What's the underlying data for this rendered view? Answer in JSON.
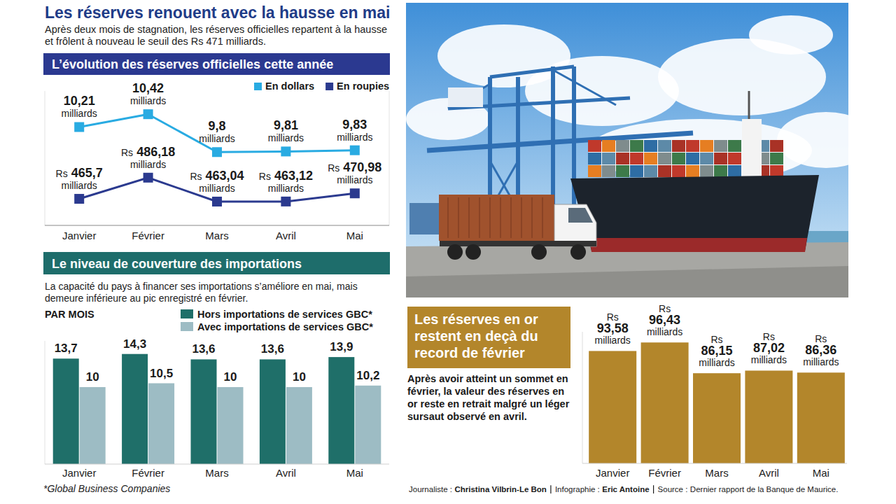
{
  "header": {
    "title": "Les réserves renouent avec la hausse en mai",
    "subtitle": "Après deux mois de stagnation, les réserves officielles repartent à la hausse et frôlent à nouveau le seuil des Rs 471 milliards."
  },
  "chart_data": [
    {
      "type": "line",
      "title": "L’évolution des réserves officielles cette année",
      "categories": [
        "Janvier",
        "Février",
        "Mars",
        "Avril",
        "Mai"
      ],
      "series": [
        {
          "name": "En dollars",
          "color": "#29abe2",
          "marker": "square",
          "values": [
            10.21,
            10.42,
            9.8,
            9.81,
            9.83
          ],
          "value_labels": [
            "10,21 milliards",
            "10,42 milliards",
            "9,8 milliards",
            "9,81 milliards",
            "9,83 milliards"
          ]
        },
        {
          "name": "En roupies",
          "color": "#2b3a8f",
          "marker": "square",
          "axis": "y2",
          "values": [
            465.7,
            486.18,
            463.04,
            463.12,
            470.98
          ],
          "value_labels": [
            "Rs 465,7 milliards",
            "Rs 486,18 milliards",
            "Rs 463,04 milliards",
            "Rs 463,12 milliards",
            "Rs 470,98 milliards"
          ]
        }
      ],
      "ylim": [
        8.6,
        10.8
      ],
      "y2lim": [
        440,
        570
      ],
      "legend": "top-right",
      "data_labels": true,
      "tick_labels": "x"
    },
    {
      "type": "bar",
      "title": "Le niveau de couverture des importations",
      "subtitle": "La capacité du pays à financer ses importations s’améliore en mai, mais demeure inférieure au pic enregistré en février.",
      "ylabel": "PAR MOIS",
      "annotations": [
        "*Global Business Companies"
      ],
      "categories": [
        "Janvier",
        "Février",
        "Mars",
        "Avril",
        "Mai"
      ],
      "series": [
        {
          "name": "Hors importations de services GBC*",
          "color": "#1f6f69",
          "values": [
            13.7,
            14.3,
            13.6,
            13.6,
            13.9
          ],
          "value_labels": [
            "13,7",
            "14,3",
            "13,6",
            "13,6",
            "13,9"
          ]
        },
        {
          "name": "Avec importations de services GBC*",
          "color": "#9dbcc4",
          "values": [
            10,
            10.5,
            10,
            10,
            10.2
          ],
          "value_labels": [
            "10",
            "10,5",
            "10",
            "10",
            "10,2"
          ]
        }
      ],
      "ylim": [
        0,
        16
      ],
      "legend": "top",
      "data_labels": true,
      "tick_labels": "x"
    },
    {
      "type": "bar",
      "title": "Les réserves en or restent en deçà du record de février",
      "subtitle": "Après avoir atteint un sommet en février, la valeur des réserves en or reste en retrait malgré un léger sursaut observé en avril.",
      "categories": [
        "Janvier",
        "Février",
        "Mars",
        "Avril",
        "Mai"
      ],
      "values": [
        93.58,
        96.43,
        86.15,
        87.02,
        86.36
      ],
      "value_labels": [
        "Rs 93,58 milliards",
        "Rs 96,43 milliards",
        "Rs 86,15 milliards",
        "Rs 87,02 milliards",
        "Rs 86,36 milliards"
      ],
      "color": "#b3862b",
      "ylim": [
        56,
        100
      ],
      "data_labels": true,
      "tick_labels": "x"
    }
  ],
  "footer": {
    "credits": [
      {
        "role": "Journaliste :",
        "name": "Christina Vilbrin-Le Bon"
      },
      {
        "role": "Infographie :",
        "name": "Eric Antoine"
      },
      {
        "role": "Source :",
        "name": "Dernier rapport de la Banque de Maurice."
      }
    ]
  }
}
